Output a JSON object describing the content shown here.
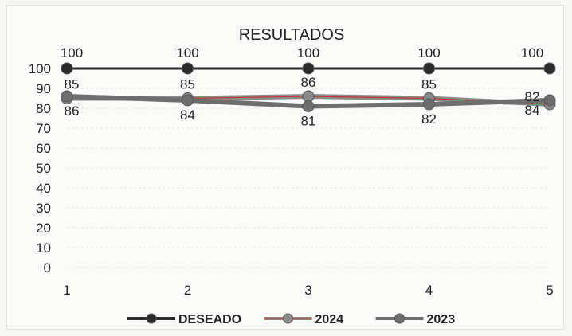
{
  "chart_data": {
    "type": "line",
    "title": "RESULTADOS",
    "xlabel": "",
    "ylabel": "",
    "x": [
      1,
      2,
      3,
      4,
      5
    ],
    "ylim": [
      0,
      100
    ],
    "yticks": [
      0,
      10,
      20,
      30,
      40,
      50,
      60,
      70,
      80,
      90,
      100
    ],
    "grid": true,
    "legend": "bottom",
    "series": [
      {
        "name": "DESEADO",
        "values": [
          100,
          100,
          100,
          100,
          100
        ],
        "color": "#2b2b2b",
        "label_pos": "above"
      },
      {
        "name": "2024",
        "values": [
          85,
          85,
          86,
          85,
          82
        ],
        "color": "#8a8a8a",
        "accent": "#c0392b",
        "label_pos": "above"
      },
      {
        "name": "2023",
        "values": [
          86,
          84,
          81,
          82,
          84
        ],
        "color": "#6e6e6e",
        "label_pos": "below"
      }
    ]
  }
}
